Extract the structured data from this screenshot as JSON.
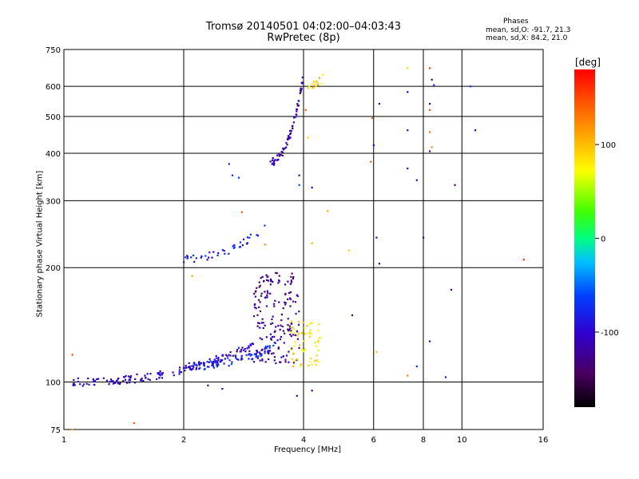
{
  "header": {
    "title_line1": "Tromsø 20140501 04:02:00–04:03:43",
    "title_line2": "RwPretec (8p)"
  },
  "stats": {
    "heading": "Phases",
    "line_o": "mean, sd,O: -91.7, 21.3",
    "line_x": "mean, sd,X:  84.2, 21.0"
  },
  "chart_data": {
    "type": "scatter",
    "xlabel": "Frequency [MHz]",
    "ylabel": "Stationary phase Virtual Height [km]",
    "x_scale": "log",
    "y_scale": "log",
    "xlim": [
      1,
      16
    ],
    "ylim": [
      75,
      750
    ],
    "x_ticks": [
      1,
      2,
      4,
      6,
      8,
      10,
      16
    ],
    "x_tick_labels": [
      "1",
      "2",
      "4",
      "6",
      "8",
      "10",
      "16"
    ],
    "y_ticks": [
      75,
      100,
      200,
      300,
      400,
      500,
      600,
      750
    ],
    "y_tick_labels": [
      "75",
      "100",
      "200",
      "300",
      "400",
      "500",
      "600",
      "750"
    ],
    "grid": true,
    "colorbar": {
      "label": "[deg]",
      "range": [
        -180,
        180
      ],
      "ticks": [
        100,
        0,
        -100
      ],
      "tick_labels": [
        "100",
        "0",
        "-100"
      ]
    },
    "traces": [
      {
        "desc": "low layer trace",
        "x_range": [
          1.05,
          3.0
        ],
        "y_start": 100,
        "y_end": 125,
        "phase": -105,
        "n": 160
      },
      {
        "desc": "E layer cluster",
        "x_range": [
          2.0,
          3.4
        ],
        "y_start": 110,
        "y_end": 125,
        "phase": -80,
        "n": 90
      },
      {
        "desc": "F1 trace",
        "x_range": [
          2.0,
          3.3
        ],
        "y_start": 212,
        "y_end": 262,
        "phase": -85,
        "n": 40
      },
      {
        "desc": "F2 cusp",
        "x_range": [
          3.3,
          4.0
        ],
        "y_start": 380,
        "y_end": 640,
        "phase": -115,
        "n": 70
      },
      {
        "desc": "F2 scatter band",
        "x_range": [
          3.0,
          3.9
        ],
        "y_start": 112,
        "y_end": 195,
        "phase": -125,
        "n": 170
      },
      {
        "desc": "sporadic yellow",
        "x_range": [
          3.7,
          4.4
        ],
        "y_start": 110,
        "y_end": 145,
        "phase": 85,
        "n": 60
      },
      {
        "desc": "upper yellow streak",
        "x_range": [
          4.1,
          4.5
        ],
        "y_start": 600,
        "y_end": 635,
        "phase": 95,
        "n": 14
      }
    ],
    "scattered_points": [
      {
        "x": 6.2,
        "y": 540,
        "phase": -110
      },
      {
        "x": 6.0,
        "y": 420,
        "phase": -100
      },
      {
        "x": 6.1,
        "y": 240,
        "phase": -110
      },
      {
        "x": 6.2,
        "y": 205,
        "phase": -115
      },
      {
        "x": 7.3,
        "y": 580,
        "phase": -100
      },
      {
        "x": 7.3,
        "y": 460,
        "phase": -90
      },
      {
        "x": 7.3,
        "y": 365,
        "phase": -110
      },
      {
        "x": 7.7,
        "y": 340,
        "phase": -120
      },
      {
        "x": 8.0,
        "y": 240,
        "phase": -120
      },
      {
        "x": 8.3,
        "y": 540,
        "phase": -130
      },
      {
        "x": 8.3,
        "y": 405,
        "phase": -110
      },
      {
        "x": 8.5,
        "y": 605,
        "phase": -70
      },
      {
        "x": 8.3,
        "y": 455,
        "phase": 130
      },
      {
        "x": 8.3,
        "y": 520,
        "phase": 150
      },
      {
        "x": 8.3,
        "y": 670,
        "phase": 160
      },
      {
        "x": 7.3,
        "y": 670,
        "phase": 90
      },
      {
        "x": 9.6,
        "y": 330,
        "phase": -130
      },
      {
        "x": 9.4,
        "y": 175,
        "phase": -140
      },
      {
        "x": 10.5,
        "y": 600,
        "phase": -70
      },
      {
        "x": 10.8,
        "y": 460,
        "phase": -110
      },
      {
        "x": 14.3,
        "y": 210,
        "phase": 160
      },
      {
        "x": 8.3,
        "y": 128,
        "phase": -120
      },
      {
        "x": 9.1,
        "y": 103,
        "phase": -110
      },
      {
        "x": 7.7,
        "y": 110,
        "phase": -70
      },
      {
        "x": 7.3,
        "y": 104,
        "phase": 130
      },
      {
        "x": 5.3,
        "y": 150,
        "phase": -130
      },
      {
        "x": 5.2,
        "y": 222,
        "phase": 95
      },
      {
        "x": 4.6,
        "y": 282,
        "phase": 110
      },
      {
        "x": 4.2,
        "y": 232,
        "phase": 110
      },
      {
        "x": 4.1,
        "y": 440,
        "phase": 90
      },
      {
        "x": 4.05,
        "y": 520,
        "phase": 140
      },
      {
        "x": 3.9,
        "y": 350,
        "phase": -120
      },
      {
        "x": 3.9,
        "y": 330,
        "phase": -60
      },
      {
        "x": 4.2,
        "y": 325,
        "phase": -110
      },
      {
        "x": 4.2,
        "y": 95,
        "phase": -120
      },
      {
        "x": 3.85,
        "y": 92,
        "phase": -120
      },
      {
        "x": 2.8,
        "y": 280,
        "phase": 140
      },
      {
        "x": 2.1,
        "y": 190,
        "phase": 110
      },
      {
        "x": 1.05,
        "y": 118,
        "phase": 150
      },
      {
        "x": 1.5,
        "y": 78,
        "phase": 140
      },
      {
        "x": 1.05,
        "y": 75,
        "phase": 110
      },
      {
        "x": 2.5,
        "y": 96,
        "phase": -100
      },
      {
        "x": 2.3,
        "y": 98,
        "phase": -110
      },
      {
        "x": 2.6,
        "y": 375,
        "phase": -80
      },
      {
        "x": 2.65,
        "y": 350,
        "phase": -80
      },
      {
        "x": 2.75,
        "y": 345,
        "phase": -70
      },
      {
        "x": 3.2,
        "y": 230,
        "phase": 120
      },
      {
        "x": 6.1,
        "y": 120,
        "phase": 100
      },
      {
        "x": 8.4,
        "y": 625,
        "phase": -140
      },
      {
        "x": 8.4,
        "y": 415,
        "phase": 120
      },
      {
        "x": 5.9,
        "y": 380,
        "phase": 140
      },
      {
        "x": 5.95,
        "y": 495,
        "phase": 140
      }
    ]
  }
}
